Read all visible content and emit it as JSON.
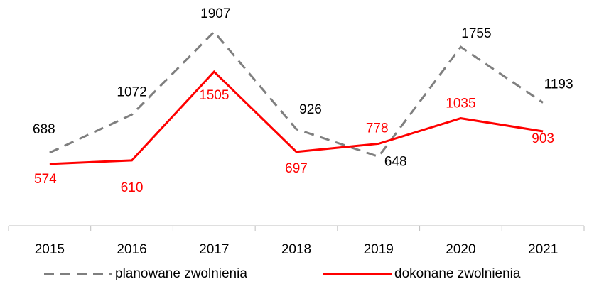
{
  "chart_data": {
    "type": "line",
    "categories": [
      "2015",
      "2016",
      "2017",
      "2018",
      "2019",
      "2020",
      "2021"
    ],
    "series": [
      {
        "name": "planowane zwolnienia",
        "color": "#7f7f7f",
        "dashed": true,
        "label_color": "#000000",
        "values": [
          688,
          1072,
          1907,
          926,
          648,
          1755,
          1193
        ]
      },
      {
        "name": "dokonane zwolnienia",
        "color": "#ff0000",
        "dashed": false,
        "label_color": "#ff0000",
        "values": [
          574,
          610,
          1505,
          697,
          778,
          1035,
          903
        ]
      }
    ],
    "ylim": [
      0,
      2100
    ],
    "legend": "bottom"
  }
}
